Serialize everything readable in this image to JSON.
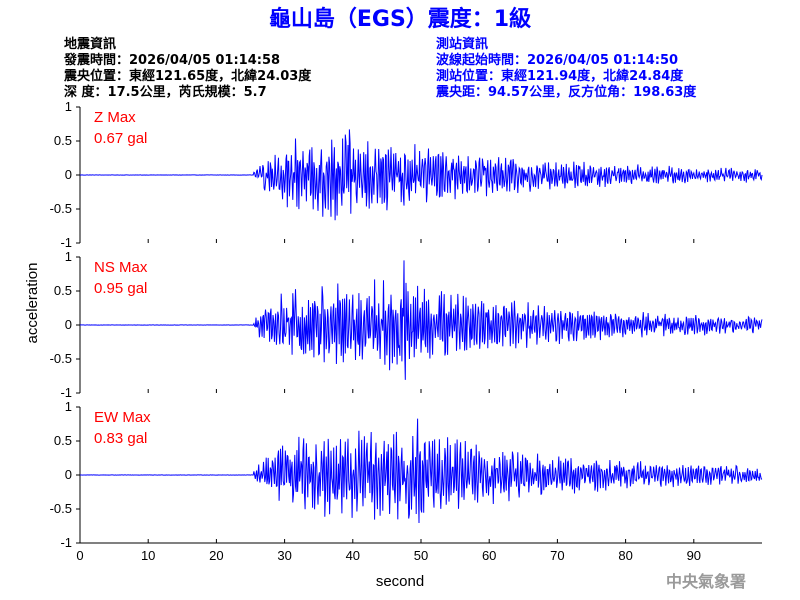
{
  "header": {
    "title": "龜山島（EGS）震度：1級",
    "title_color": "#0000ff"
  },
  "quake_info": {
    "heading": "地震資訊",
    "time": "發震時間：2026/04/05 01:14:58",
    "epicenter": "震央位置：東經121.65度，北緯24.03度",
    "depth_magnitude": "深 度：17.5公里，芮氏規模：5.7"
  },
  "station_info": {
    "heading": "測站資訊",
    "wave_start": "波線起始時間：2026/04/05 01:14:50",
    "location": "測站位置：東經121.94度，北緯24.84度",
    "distance": "震央距：94.57公里，反方位角：198.63度",
    "color": "#0000ff"
  },
  "watermark": "中央氣象署",
  "chart_data": {
    "type": "line",
    "xlabel": "second",
    "ylabel": "acceleration",
    "xlim": [
      0,
      100
    ],
    "ylim": [
      -1,
      1
    ],
    "x_ticks": [
      "0",
      "10",
      "20",
      "30",
      "40",
      "50",
      "60",
      "70",
      "80",
      "90"
    ],
    "y_ticks": [
      "1",
      "0.5",
      "0",
      "-0.5",
      "-1"
    ],
    "grid": false,
    "line_color": "#0000ff",
    "label_color": "#ff0000",
    "series": [
      {
        "name": "Z Max",
        "max_label": "0.67 gal",
        "peak": 0.67,
        "peak_time": 39.5,
        "onset": 25.5
      },
      {
        "name": "NS Max",
        "max_label": "0.95 gal",
        "peak": 0.95,
        "peak_time": 47.5,
        "onset": 25.5
      },
      {
        "name": "EW Max",
        "max_label": "0.83 gal",
        "peak": 0.83,
        "peak_time": 49.5,
        "onset": 25.5
      }
    ]
  }
}
